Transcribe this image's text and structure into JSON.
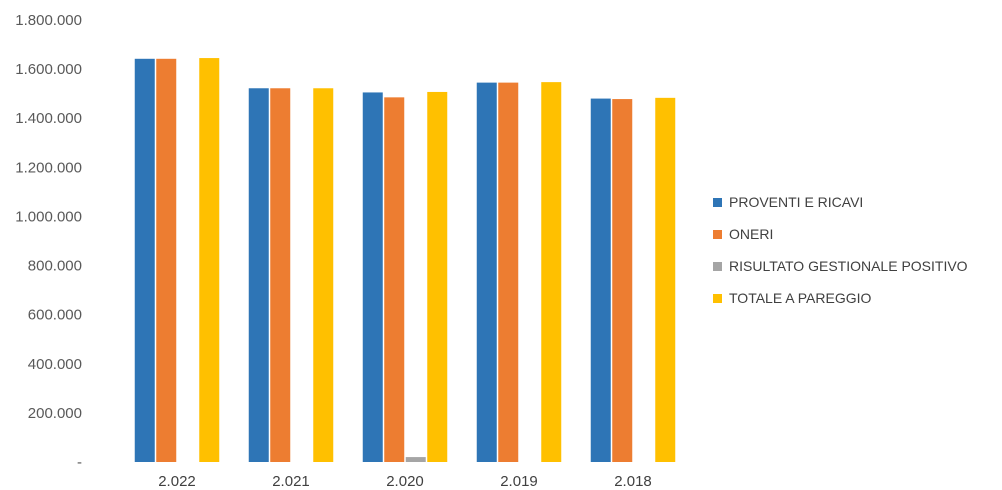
{
  "chart_data": {
    "type": "bar",
    "categories": [
      "2.022",
      "2.021",
      "2.020",
      "2.019",
      "2.018"
    ],
    "series": [
      {
        "name": "PROVENTI E RICAVI",
        "color": "#2E75B6",
        "values": [
          1642000,
          1522000,
          1505000,
          1545000,
          1480000
        ]
      },
      {
        "name": "ONERI",
        "color": "#ED7D31",
        "values": [
          1642000,
          1522000,
          1485000,
          1545000,
          1478000
        ]
      },
      {
        "name": "RISULTATO GESTIONALE POSITIVO",
        "color": "#A5A5A5",
        "values": [
          0,
          0,
          20000,
          0,
          0
        ]
      },
      {
        "name": "TOTALE A PAREGGIO",
        "color": "#FFC000",
        "values": [
          1645000,
          1522000,
          1507000,
          1547000,
          1483000
        ]
      }
    ],
    "yticks": [
      "-",
      "200.000",
      "400.000",
      "600.000",
      "800.000",
      "1.000.000",
      "1.200.000",
      "1.400.000",
      "1.600.000",
      "1.800.000"
    ],
    "ylim": [
      0,
      1800000
    ],
    "grid": false,
    "legend_position": "right"
  }
}
